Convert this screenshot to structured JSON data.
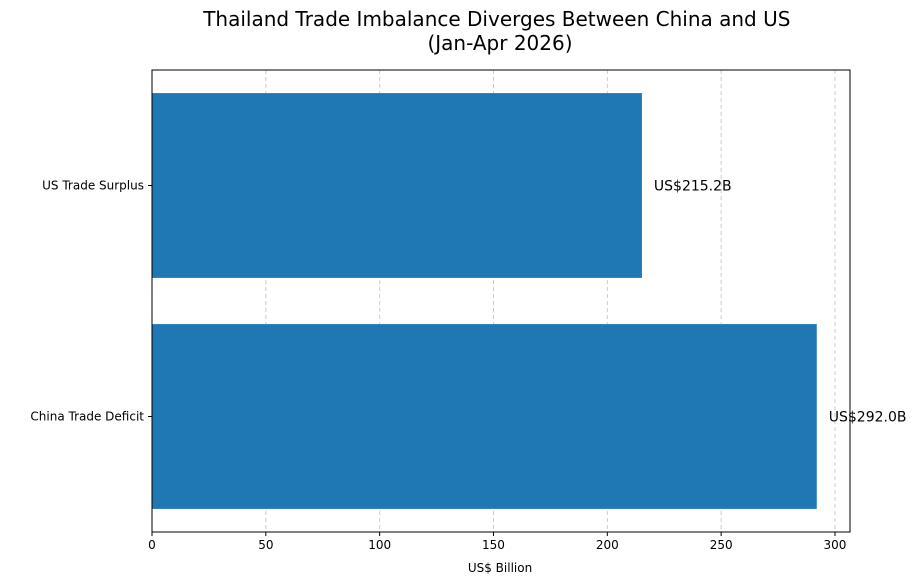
{
  "chart_data": {
    "type": "bar",
    "orientation": "horizontal",
    "title": "Thailand Trade Imbalance Diverges Between China and US\n(Jan-Apr 2026)",
    "title_lines": [
      "Thailand Trade Imbalance Diverges Between China and US",
      "(Jan-Apr 2026)"
    ],
    "xlabel": "US$ Billion",
    "ylabel": "",
    "categories": [
      "China Trade Deficit",
      "US Trade Surplus"
    ],
    "values": [
      292.0,
      215.2
    ],
    "data_labels": [
      "US$292.0B",
      "US$215.2B"
    ],
    "xlim": [
      0,
      306.6
    ],
    "xticks": [
      0,
      50,
      100,
      150,
      200,
      250,
      300
    ],
    "xtick_labels": [
      "0",
      "50",
      "100",
      "150",
      "200",
      "250",
      "300"
    ],
    "grid": "x-axis dashed",
    "colors": {
      "bar": "#1f77b4",
      "grid": "#cccccc",
      "axis": "#000000"
    }
  }
}
